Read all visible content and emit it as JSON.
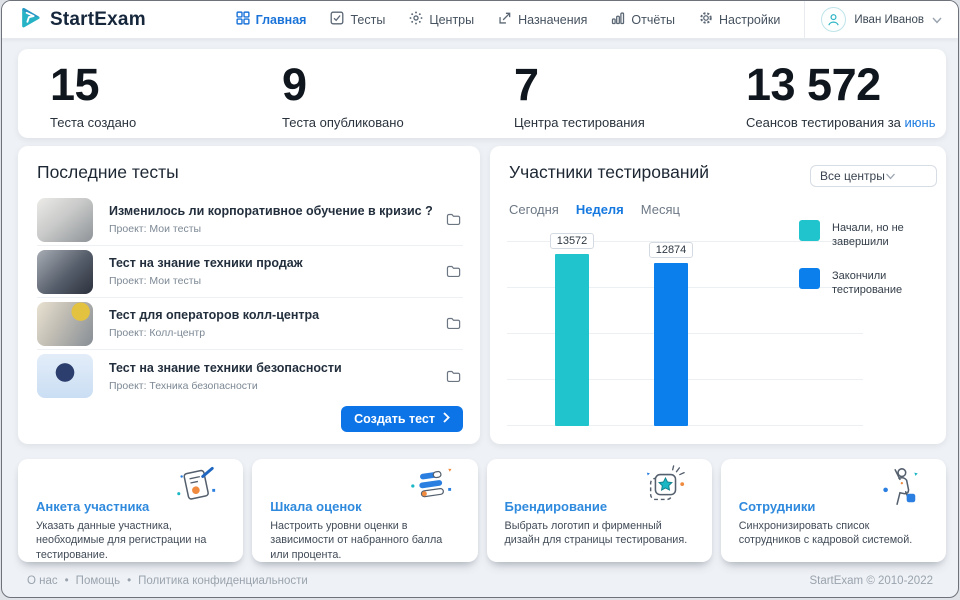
{
  "brand": {
    "name": "StartExam"
  },
  "nav": {
    "items": [
      {
        "label": "Главная",
        "icon": "grid-icon",
        "active": true
      },
      {
        "label": "Тесты",
        "icon": "checkbox-icon",
        "active": false
      },
      {
        "label": "Центры",
        "icon": "dotted-hub-icon",
        "active": false
      },
      {
        "label": "Назначения",
        "icon": "assign-arrow-icon",
        "active": false
      },
      {
        "label": "Отчёты",
        "icon": "bar-report-icon",
        "active": false
      },
      {
        "label": "Настройки",
        "icon": "gear-icon",
        "active": false
      }
    ],
    "user": {
      "name": "Иван Иванов",
      "icon": "user-avatar-icon"
    }
  },
  "stats": [
    {
      "value": "15",
      "label": "Теста создано"
    },
    {
      "value": "9",
      "label": "Теста опубликовано"
    },
    {
      "value": "7",
      "label": "Центра тестирования"
    },
    {
      "value": "13 572",
      "label_prefix": "Сеансов тестирования за",
      "label_link": "июнь"
    }
  ],
  "recent_tests": {
    "title": "Последние тесты",
    "items": [
      {
        "title": "Изменилось ли корпоративное обучение в кризис ?",
        "project": "Проект: Мои тесты"
      },
      {
        "title": "Тест на знание техники продаж",
        "project": "Проект: Мои тесты"
      },
      {
        "title": "Тест для операторов колл-центра",
        "project": "Проект: Колл-центр"
      },
      {
        "title": "Тест на знание техники безопасности",
        "project": "Проект: Техника безопасности"
      }
    ],
    "create_button_label": "Создать тест"
  },
  "participants": {
    "title": "Участники тестирований",
    "dropdown_value": "Все центры",
    "tabs": [
      {
        "label": "Сегодня",
        "active": false
      },
      {
        "label": "Неделя",
        "active": true
      },
      {
        "label": "Месяц",
        "active": false
      }
    ]
  },
  "chart_data": {
    "type": "bar",
    "title": "Участники тестирований",
    "period": "Неделя",
    "categories": [
      "Начали, но не завершили",
      "Закончили тестирование"
    ],
    "series": [
      {
        "name": "Начали, но не завершили",
        "value": 13572,
        "value_label": "13572",
        "color": "#1fc4cd"
      },
      {
        "name": "Закончили тестирование",
        "value": 12874,
        "value_label": "12874",
        "color": "#0b80ec"
      }
    ],
    "ylim": [
      0,
      14500
    ],
    "gridlines": true,
    "legend_position": "right",
    "value_labels_shown": true
  },
  "cards": [
    {
      "title": "Анкета участника",
      "desc": "Указать данные участника, необходимые для регистрации на тестирование.",
      "icon": "survey-form-icon"
    },
    {
      "title": "Шкала оценок",
      "desc": "Настроить уровни оценки в зависимости от набранного балла или процента.",
      "icon": "grade-scale-icon"
    },
    {
      "title": "Брендирование",
      "desc": "Выбрать логотип и фирменный дизайн для страницы тестирования.",
      "icon": "branding-star-icon"
    },
    {
      "title": "Сотрудники",
      "desc": "Синхронизировать список сотрудников с кадровой системой.",
      "icon": "employees-icon"
    }
  ],
  "footer": {
    "links": [
      "О нас",
      "Помощь",
      "Политика конфиденциальности"
    ],
    "separator": "•",
    "copyright": "StartExam © 2010-2022"
  },
  "colors": {
    "accent_blue": "#1a73d9",
    "teal": "#1fc4cd",
    "bar_blue": "#0b80ec"
  }
}
